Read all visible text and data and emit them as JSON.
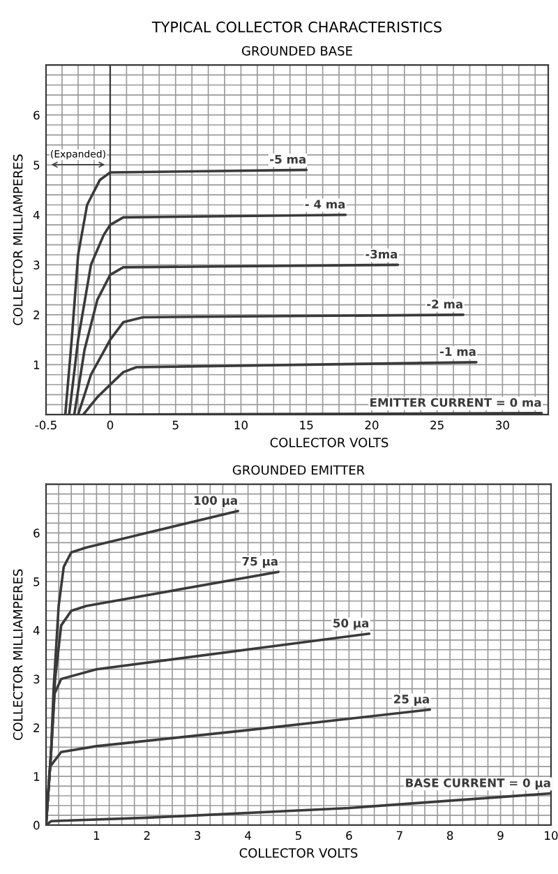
{
  "chart_data": [
    {
      "type": "line",
      "ylabel": "COLLECTOR MILLIAMPERES",
      "xlim": [
        -0.5,
        0
      ],
      "ylim": [
        0,
        7
      ],
      "xticks": [
        -0.5,
        0
      ],
      "yticks": [
        1,
        2,
        3,
        4,
        5,
        6
      ],
      "grid": true,
      "annotations": [
        "(Expanded)"
      ],
      "series": [
        {
          "color": "#3a3a3a",
          "x": [
            -0.35,
            -0.3,
            -0.25,
            -0.18,
            -0.08,
            0
          ],
          "values": [
            0,
            1.5,
            3.2,
            4.2,
            4.7,
            4.85
          ]
        },
        {
          "color": "#3a3a3a",
          "x": [
            -0.32,
            -0.25,
            -0.15,
            -0.05,
            0
          ],
          "values": [
            0,
            1.5,
            3.0,
            3.6,
            3.8
          ]
        },
        {
          "color": "#3a3a3a",
          "x": [
            -0.28,
            -0.2,
            -0.1,
            0
          ],
          "values": [
            0,
            1.3,
            2.3,
            2.8
          ]
        },
        {
          "color": "#3a3a3a",
          "x": [
            -0.25,
            -0.15,
            0
          ],
          "values": [
            0,
            0.8,
            1.5
          ]
        },
        {
          "color": "#3a3a3a",
          "x": [
            -0.21,
            -0.1,
            0
          ],
          "values": [
            0,
            0.35,
            0.6
          ]
        }
      ]
    },
    {
      "type": "line",
      "title": "TYPICAL COLLECTOR CHARACTERISTICS",
      "subtitle": "GROUNDED BASE",
      "xlabel": "COLLECTOR VOLTS",
      "xlim": [
        0,
        33.5
      ],
      "ylim": [
        0,
        7
      ],
      "xticks": [
        5,
        10,
        15,
        20,
        25,
        30
      ],
      "yticks": [
        1,
        2,
        3,
        4,
        5,
        6
      ],
      "grid": true,
      "tick_labels": "x",
      "series": [
        {
          "name": "-5 ma",
          "color": "#3a3a3a",
          "x": [
            0,
            15
          ],
          "values": [
            4.85,
            4.9
          ]
        },
        {
          "name": "- 4 ma",
          "color": "#3a3a3a",
          "x": [
            0,
            1,
            18
          ],
          "values": [
            3.8,
            3.95,
            4.0
          ]
        },
        {
          "name": "-3ma",
          "color": "#3a3a3a",
          "x": [
            0,
            1,
            22
          ],
          "values": [
            2.8,
            2.95,
            3.0
          ]
        },
        {
          "name": "-2 ma",
          "color": "#3a3a3a",
          "x": [
            0,
            1,
            2.5,
            27
          ],
          "values": [
            1.5,
            1.85,
            1.95,
            2.0
          ]
        },
        {
          "name": "-1 ma",
          "color": "#3a3a3a",
          "x": [
            0,
            1,
            2,
            28
          ],
          "values": [
            0.6,
            0.85,
            0.95,
            1.05
          ]
        },
        {
          "name": "EMITTER CURRENT = 0 ma",
          "color": "#3a3a3a",
          "x": [
            0,
            33
          ],
          "values": [
            0,
            0.03
          ]
        }
      ]
    },
    {
      "type": "line",
      "title": "GROUNDED EMITTER",
      "xlabel": "COLLECTOR VOLTS",
      "ylabel": "COLLECTOR MILLIAMPERES",
      "xlim": [
        0,
        10
      ],
      "ylim": [
        0,
        7
      ],
      "xticks": [
        1,
        2,
        3,
        4,
        5,
        6,
        7,
        8,
        9,
        10
      ],
      "yticks": [
        0,
        1,
        2,
        3,
        4,
        5,
        6
      ],
      "grid": true,
      "series": [
        {
          "name": "100 μa",
          "color": "#3a3a3a",
          "x": [
            0,
            0.1,
            0.15,
            0.25,
            0.35,
            0.5,
            0.8,
            2,
            3.8
          ],
          "values": [
            0,
            1.5,
            2.8,
            4.5,
            5.3,
            5.6,
            5.7,
            6.0,
            6.45
          ]
        },
        {
          "name": "75 μa",
          "color": "#3a3a3a",
          "x": [
            0,
            0.1,
            0.18,
            0.3,
            0.5,
            0.8,
            4.6
          ],
          "values": [
            0,
            1.5,
            3.0,
            4.1,
            4.4,
            4.5,
            5.2
          ]
        },
        {
          "name": "50 μa",
          "color": "#3a3a3a",
          "x": [
            0,
            0.1,
            0.17,
            0.3,
            1,
            6.4
          ],
          "values": [
            0,
            1.5,
            2.7,
            3.0,
            3.2,
            3.93
          ]
        },
        {
          "name": "25 μa",
          "color": "#3a3a3a",
          "x": [
            0,
            0.08,
            0.3,
            1,
            4,
            7.6
          ],
          "values": [
            0,
            1.2,
            1.5,
            1.62,
            1.95,
            2.37
          ]
        },
        {
          "name": "BASE CURRENT = 0 μa",
          "color": "#3a3a3a",
          "x": [
            0,
            0.1,
            2,
            6,
            10
          ],
          "values": [
            0,
            0.08,
            0.15,
            0.35,
            0.65
          ]
        }
      ]
    }
  ]
}
